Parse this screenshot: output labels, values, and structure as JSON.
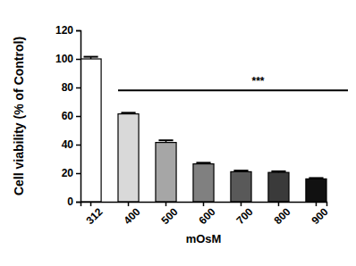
{
  "chart_data": {
    "type": "bar",
    "x_label": "mOsM",
    "y_label": "Cell viability (% of Control)",
    "categories": [
      "312",
      "400",
      "500",
      "600",
      "700",
      "800",
      "900"
    ],
    "values": [
      100,
      61.5,
      41.5,
      26.5,
      21,
      20.5,
      16
    ],
    "errors": [
      1.5,
      0.8,
      1.5,
      0.8,
      0.8,
      0.8,
      0.6
    ],
    "colors": [
      "#ffffff",
      "#d9d9d9",
      "#a6a6a6",
      "#808080",
      "#595959",
      "#3a3a3a",
      "#111111"
    ],
    "ylim": [
      0,
      120
    ],
    "yticks": [
      0,
      20,
      40,
      60,
      80,
      100,
      120
    ],
    "annotations": [
      {
        "text": "***",
        "y": 78,
        "x_range": [
          "400",
          "900"
        ]
      }
    ]
  }
}
